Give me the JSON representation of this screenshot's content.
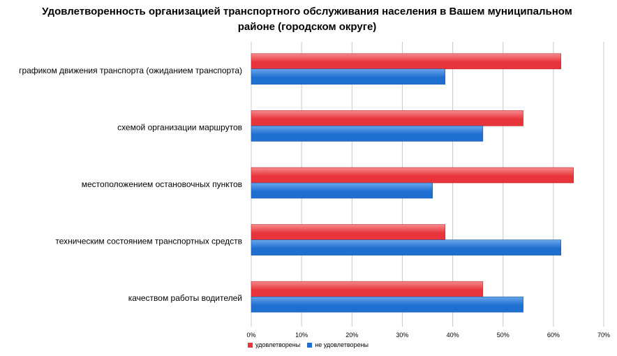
{
  "chart_data": {
    "type": "bar",
    "orientation": "horizontal",
    "title": "Удовлетворенность организацией транспортного обслуживания населения в Вашем муниципальном районе (городском округе)",
    "categories": [
      "графиком движения транспорта (ожиданием транспорта)",
      "схемой организации маршрутов",
      "местоположением остановочных пунктов",
      "техническим состоянием транспортных средств",
      "качеством работы водителей"
    ],
    "series": [
      {
        "name": "удовлетворены",
        "color": "#e8353b",
        "values": [
          61.5,
          54,
          64,
          38.5,
          46
        ]
      },
      {
        "name": "не удовлетворены",
        "color": "#1f6fd0",
        "values": [
          38.5,
          46,
          36,
          61.5,
          54
        ]
      }
    ],
    "xlim": [
      0,
      70
    ],
    "x_ticks": [
      "0%",
      "10%",
      "20%",
      "30%",
      "40%",
      "50%",
      "60%",
      "70%"
    ],
    "x_tick_values": [
      0,
      10,
      20,
      30,
      40,
      50,
      60,
      70
    ],
    "grid": true,
    "legend_position": "bottom"
  }
}
